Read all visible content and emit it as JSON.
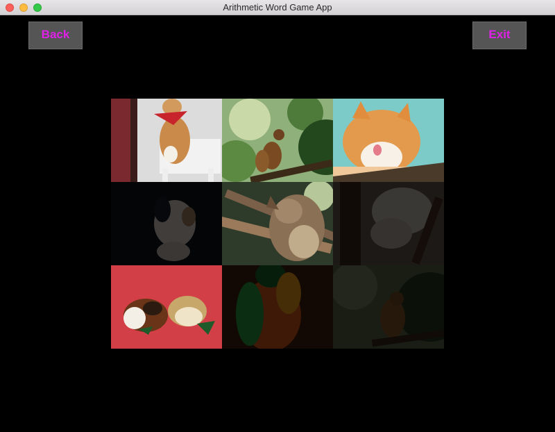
{
  "window": {
    "title": "Arithmetic Word Game App"
  },
  "nav": {
    "back_label": "Back",
    "exit_label": "Exit",
    "label_color": "#e020e8"
  },
  "grid": {
    "tiles": [
      {
        "subject": "cat-with-red-bandana",
        "revealed": true
      },
      {
        "subject": "squirrel-on-pine-branch",
        "revealed": true
      },
      {
        "subject": "orange-cat-licking-paw",
        "revealed": true
      },
      {
        "subject": "puppy",
        "revealed": false
      },
      {
        "subject": "owl",
        "revealed": true
      },
      {
        "subject": "koala",
        "revealed": false
      },
      {
        "subject": "guinea-pigs-on-red",
        "revealed": true
      },
      {
        "subject": "parrot",
        "revealed": false
      },
      {
        "subject": "squirrel-in-tree",
        "revealed": false
      }
    ]
  }
}
